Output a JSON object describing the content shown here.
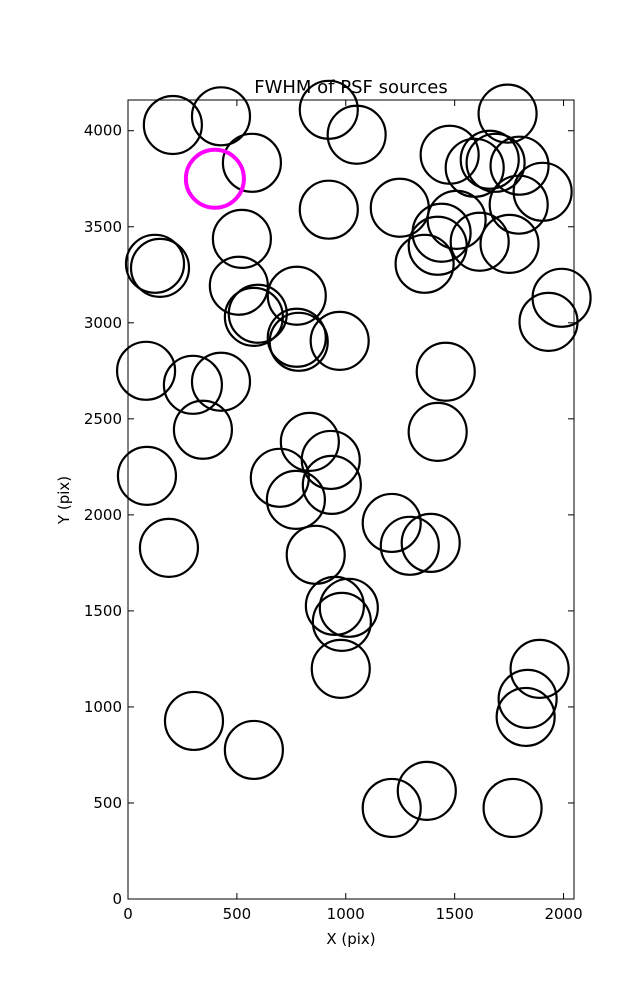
{
  "chart_data": {
    "type": "scatter",
    "title": "FWHM of PSF sources",
    "x_label": "X (pix)",
    "y_label": "Y (pix)",
    "xlim": [
      0,
      2048
    ],
    "ylim": [
      0,
      4160
    ],
    "xticks": [
      0,
      500,
      1000,
      1500,
      2000
    ],
    "yticks": [
      0,
      500,
      1000,
      1500,
      2000,
      2500,
      3000,
      3500,
      4000
    ],
    "grid": false,
    "series": [
      {
        "color": "#000000",
        "linewidth": 2.2,
        "marker": "open-circle",
        "x": [
          206,
          427,
          569,
          922,
          1050,
          922,
          523,
          509,
          578,
          596,
          775,
          775,
          784,
          972,
          124,
          147,
          83,
          298,
          427,
          344,
          87,
          188,
          697,
          771,
          835,
          931,
          936,
          862,
          950,
          1014,
          982,
          977,
          303,
          578,
          1211,
          1372,
          1766,
          1826,
          1835,
          1890,
          1211,
          1294,
          1390,
          1422,
          1459,
          1248,
          1362,
          1422,
          1440,
          1509,
          1615,
          1477,
          1592,
          1661,
          1688,
          1743,
          1798,
          1794,
          1752,
          1904,
          1991,
          1931
        ],
        "y": [
          4030,
          4075,
          3833,
          4109,
          3979,
          3589,
          3437,
          3193,
          3031,
          3047,
          3141,
          2922,
          2901,
          2906,
          3307,
          3286,
          2750,
          2677,
          2693,
          2443,
          2203,
          1828,
          2193,
          2078,
          2380,
          2286,
          2156,
          1792,
          1526,
          1516,
          1443,
          1198,
          927,
          776,
          474,
          563,
          474,
          948,
          1042,
          1198,
          1958,
          1839,
          1854,
          2432,
          2745,
          3599,
          3307,
          3401,
          3469,
          3536,
          3422,
          3875,
          3807,
          3849,
          3833,
          4089,
          3818,
          3615,
          3411,
          3682,
          3130,
          3005
        ]
      },
      {
        "color": "#ff00ff",
        "linewidth": 4,
        "marker": "open-circle",
        "x": [
          399
        ],
        "y": [
          3750
        ]
      }
    ]
  }
}
